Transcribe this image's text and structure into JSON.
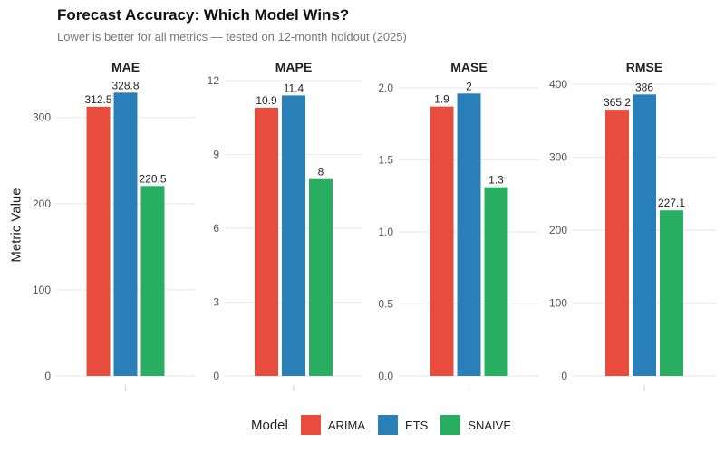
{
  "chart_data": {
    "type": "bar",
    "title": "Forecast Accuracy: Which Model Wins?",
    "subtitle": "Lower is better for all metrics — tested on 12-month holdout (2025)",
    "ylabel": "Metric Value",
    "xlabel": "",
    "legend": {
      "title": "Model",
      "position": "bottom"
    },
    "grid": true,
    "categories": [
      "ARIMA",
      "ETS",
      "SNAIVE"
    ],
    "colors": {
      "ARIMA": "#e74c3c",
      "ETS": "#2980b9",
      "SNAIVE": "#27ae60"
    },
    "facets": [
      {
        "name": "MAE",
        "values": [
          312.5,
          328.8,
          220.5
        ],
        "labels": [
          "312.5",
          "328.8",
          "220.5"
        ],
        "ylim": [
          0,
          347
        ],
        "ticks": [
          0,
          100,
          200,
          300
        ],
        "tick_labels": [
          "0",
          "100",
          "200",
          "300"
        ]
      },
      {
        "name": "MAPE",
        "values": [
          10.9,
          11.4,
          8.0
        ],
        "labels": [
          "10.9",
          "11.4",
          "8"
        ],
        "ylim": [
          0,
          12.15
        ],
        "ticks": [
          0,
          3,
          6,
          9,
          12
        ],
        "tick_labels": [
          "0",
          "3",
          "6",
          "9",
          "12"
        ]
      },
      {
        "name": "MASE",
        "values": [
          1.87,
          1.96,
          1.31
        ],
        "labels": [
          "1.9",
          "2",
          "1.3"
        ],
        "ylim": [
          0,
          2.075
        ],
        "ticks": [
          0,
          0.5,
          1.0,
          1.5,
          2.0
        ],
        "tick_labels": [
          "0.0",
          "0.5",
          "1.0",
          "1.5",
          "2.0"
        ]
      },
      {
        "name": "RMSE",
        "values": [
          365.2,
          386.0,
          227.1
        ],
        "labels": [
          "365.2",
          "386",
          "227.1"
        ],
        "ylim": [
          0,
          410
        ],
        "ticks": [
          0,
          100,
          200,
          300,
          400
        ],
        "tick_labels": [
          "0",
          "100",
          "200",
          "300",
          "400"
        ]
      }
    ]
  }
}
